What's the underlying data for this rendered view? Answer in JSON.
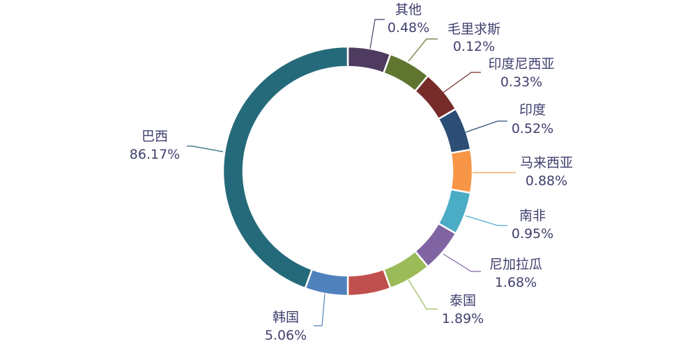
{
  "chart_data": {
    "type": "pie",
    "title": "",
    "donut": true,
    "legend": "none",
    "slices": [
      {
        "label": "其他",
        "value": 0.48,
        "value_text": "0.48%",
        "color": "#4f3b60"
      },
      {
        "label": "毛里求斯",
        "value": 0.12,
        "value_text": "0.12%",
        "color": "#5f7530"
      },
      {
        "label": "印度尼西亚",
        "value": 0.33,
        "value_text": "0.33%",
        "color": "#772c2a"
      },
      {
        "label": "印度",
        "value": 0.52,
        "value_text": "0.52%",
        "color": "#2c4d75"
      },
      {
        "label": "马来西亚",
        "value": 0.88,
        "value_text": "0.88%",
        "color": "#f79646"
      },
      {
        "label": "南非",
        "value": 0.95,
        "value_text": "0.95%",
        "color": "#4bacc6"
      },
      {
        "label": "尼加拉瓜",
        "value": 1.68,
        "value_text": "1.68%",
        "color": "#8064a2"
      },
      {
        "label": "泰国",
        "value": 1.89,
        "value_text": "1.89%",
        "color": "#9bbb59"
      },
      {
        "label": "韩国",
        "value": 5.06,
        "value_text": "5.06%",
        "color": "#4f81bd"
      },
      {
        "label": "巴西",
        "value": 86.17,
        "value_text": "86.17%",
        "color": "#256a7a"
      }
    ],
    "extra_colors": {
      "unlabeled_slice": "#c0504d"
    }
  }
}
